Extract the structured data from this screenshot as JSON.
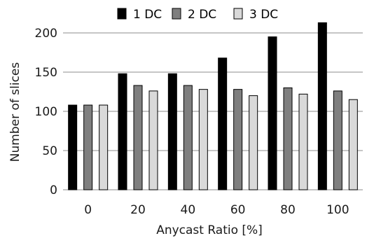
{
  "chart_data": {
    "type": "bar",
    "categories": [
      "0",
      "20",
      "40",
      "60",
      "80",
      "100"
    ],
    "series": [
      {
        "name": "1 DC",
        "color": "#000000",
        "values": [
          108,
          148,
          148,
          168,
          195,
          213
        ]
      },
      {
        "name": "2 DC",
        "color": "#7f7f7f",
        "values": [
          108,
          133,
          133,
          128,
          130,
          126
        ]
      },
      {
        "name": "3 DC",
        "color": "#d9d9d9",
        "values": [
          108,
          126,
          128,
          120,
          122,
          115
        ]
      }
    ],
    "xlabel": "Anycast Ratio [%]",
    "ylabel": "Number of slices",
    "ylim": [
      0,
      200
    ],
    "yticks": [
      0,
      50,
      100,
      150,
      200
    ],
    "grid": true,
    "legend_position": "top"
  }
}
